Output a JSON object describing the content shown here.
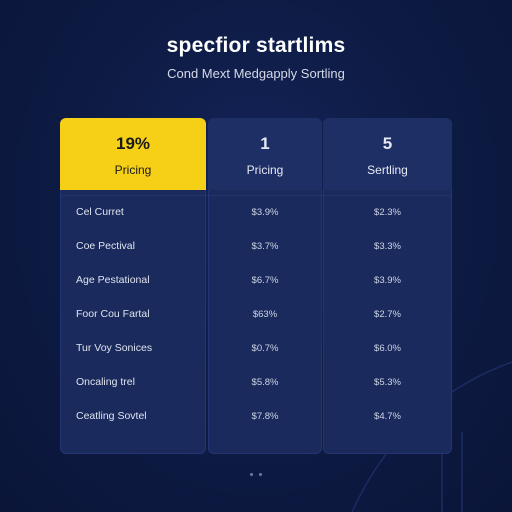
{
  "header": {
    "title": "specfior startlims",
    "subtitle": "Cond Mext Medgapply Sortling"
  },
  "table": {
    "columns": [
      {
        "value": "19%",
        "label": "Pricing",
        "highlighted": true
      },
      {
        "value": "1",
        "label": "Pricing",
        "highlighted": false
      },
      {
        "value": "5",
        "label": "Sertling",
        "highlighted": false
      }
    ],
    "rows": [
      {
        "label": "Cel Curret",
        "v1": "$3.9%",
        "v2": "$2.3%"
      },
      {
        "label": "Coe Pectival",
        "v1": "$3.7%",
        "v2": "$3.3%"
      },
      {
        "label": "Age Pestational",
        "v1": "$6.7%",
        "v2": "$3.9%"
      },
      {
        "label": "Foor Cou Fartal",
        "v1": "$63%",
        "v2": "$2.7%"
      },
      {
        "label": "Tur Voy Sonices",
        "v1": "$0.7%",
        "v2": "$6.0%"
      },
      {
        "label": "Oncaling trel",
        "v1": "$5.8%",
        "v2": "$5.3%"
      },
      {
        "label": "Ceatling Sovtel",
        "v1": "$7.8%",
        "v2": "$4.7%"
      }
    ]
  },
  "colors": {
    "background": "#0d1a42",
    "card": "#1a2a5c",
    "accent": "#f5d017"
  }
}
